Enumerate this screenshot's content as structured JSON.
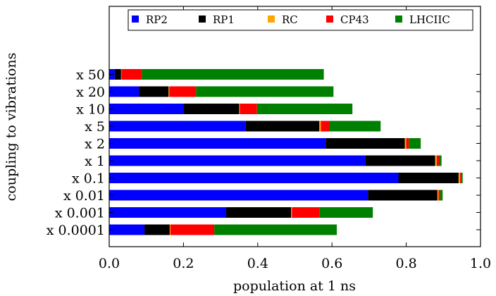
{
  "chart_data": {
    "type": "bar",
    "orientation": "horizontal",
    "stacked": true,
    "xlabel": "population at 1 ns",
    "ylabel": "coupling to vibrations",
    "xlim": [
      0.0,
      1.0
    ],
    "xticks": [
      "0.0",
      "0.2",
      "0.4",
      "0.6",
      "0.8",
      "1.0"
    ],
    "xtick_values": [
      0.0,
      0.2,
      0.4,
      0.6,
      0.8,
      1.0
    ],
    "grid": false,
    "legend_position": "top",
    "categories": [
      "x 0.0001",
      "x 0.001",
      "x 0.01",
      "x 0.1",
      "x 1",
      "x 2",
      "x 5",
      "x 10",
      "x 20",
      "x 50"
    ],
    "series": [
      {
        "name": "RP2",
        "color": "#0000ff",
        "values": [
          0.095,
          0.315,
          0.697,
          0.779,
          0.69,
          0.583,
          0.368,
          0.2,
          0.08,
          0.015
        ]
      },
      {
        "name": "RP1",
        "color": "#000000",
        "values": [
          0.068,
          0.175,
          0.187,
          0.162,
          0.188,
          0.213,
          0.198,
          0.15,
          0.08,
          0.017
        ]
      },
      {
        "name": "RC",
        "color": "#ffa500",
        "values": [
          0.002,
          0.002,
          0.003,
          0.004,
          0.004,
          0.004,
          0.004,
          0.002,
          0.002,
          0.001
        ]
      },
      {
        "name": "CP43",
        "color": "#ff0000",
        "values": [
          0.118,
          0.075,
          0.004,
          0.003,
          0.006,
          0.007,
          0.022,
          0.046,
          0.072,
          0.055
        ]
      },
      {
        "name": "LHCIIC",
        "color": "#008000",
        "values": [
          0.33,
          0.143,
          0.007,
          0.004,
          0.007,
          0.032,
          0.139,
          0.257,
          0.37,
          0.49
        ]
      }
    ]
  }
}
